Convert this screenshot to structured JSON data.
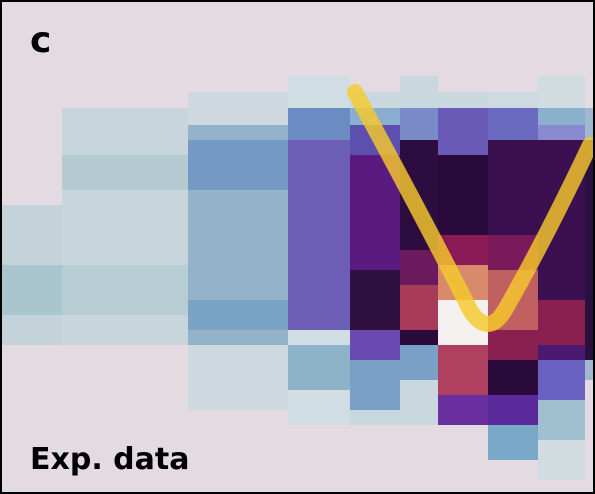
{
  "panel": {
    "letter": "c",
    "label": "Exp. data"
  }
}
